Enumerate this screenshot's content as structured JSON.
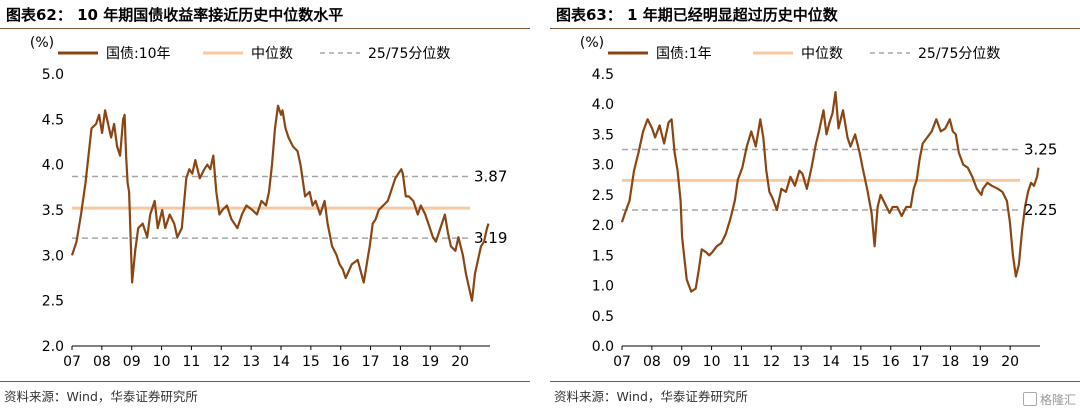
{
  "left": {
    "figure_label": "图表62：",
    "title": "10 年期国债收益率接近历史中位数水平",
    "source": "资料来源：Wind，华泰证券研究所",
    "chart_data": {
      "type": "line",
      "unit_label": "(%)",
      "ylim": [
        2.0,
        5.0
      ],
      "yticks": [
        "5.0",
        "4.5",
        "4.0",
        "3.5",
        "3.0",
        "2.5",
        "2.0"
      ],
      "xlim": [
        2007.0,
        2020.9
      ],
      "xticks": [
        "07",
        "08",
        "09",
        "10",
        "11",
        "12",
        "13",
        "14",
        "15",
        "16",
        "17",
        "18",
        "19",
        "20"
      ],
      "legend": [
        "国债:10年",
        "中位数",
        "25/75分位数"
      ],
      "median": 3.52,
      "p25": 3.19,
      "p75": 3.87,
      "p25_label": "3.19",
      "p75_label": "3.87",
      "series_color": "#8B4513",
      "median_color": "#F8C8A0",
      "quantile_color": "#A6A6A6",
      "series": {
        "name": "国债:10年",
        "x": [
          2007.0,
          2007.15,
          2007.3,
          2007.45,
          2007.55,
          2007.65,
          2007.8,
          2007.9,
          2008.0,
          2008.1,
          2008.2,
          2008.3,
          2008.4,
          2008.5,
          2008.6,
          2008.7,
          2008.75,
          2008.8,
          2008.85,
          2008.9,
          2008.95,
          2009.0,
          2009.1,
          2009.2,
          2009.35,
          2009.5,
          2009.6,
          2009.75,
          2009.85,
          2010.0,
          2010.1,
          2010.25,
          2010.4,
          2010.5,
          2010.65,
          2010.8,
          2010.9,
          2011.0,
          2011.1,
          2011.25,
          2011.4,
          2011.5,
          2011.6,
          2011.7,
          2011.8,
          2011.9,
          2012.0,
          2012.15,
          2012.3,
          2012.5,
          2012.65,
          2012.8,
          2013.0,
          2013.15,
          2013.3,
          2013.45,
          2013.55,
          2013.65,
          2013.75,
          2013.85,
          2013.95,
          2014.0,
          2014.1,
          2014.2,
          2014.35,
          2014.5,
          2014.6,
          2014.75,
          2014.9,
          2015.0,
          2015.1,
          2015.25,
          2015.4,
          2015.5,
          2015.65,
          2015.8,
          2015.9,
          2016.0,
          2016.1,
          2016.3,
          2016.5,
          2016.7,
          2016.8,
          2016.9,
          2017.0,
          2017.1,
          2017.2,
          2017.35,
          2017.5,
          2017.6,
          2017.75,
          2017.85,
          2017.95,
          2018.0,
          2018.1,
          2018.2,
          2018.35,
          2018.5,
          2018.6,
          2018.75,
          2018.9,
          2019.0,
          2019.1,
          2019.25,
          2019.4,
          2019.5,
          2019.6,
          2019.75,
          2019.85,
          2020.0,
          2020.1,
          2020.2,
          2020.3,
          2020.4,
          2020.5,
          2020.6,
          2020.7,
          2020.8,
          2020.85
        ],
        "y": [
          3.0,
          3.15,
          3.45,
          3.8,
          4.1,
          4.4,
          4.45,
          4.55,
          4.35,
          4.6,
          4.45,
          4.3,
          4.45,
          4.2,
          4.1,
          4.5,
          4.55,
          4.1,
          3.8,
          3.7,
          3.2,
          2.7,
          3.05,
          3.3,
          3.35,
          3.2,
          3.45,
          3.6,
          3.3,
          3.5,
          3.3,
          3.45,
          3.35,
          3.2,
          3.3,
          3.85,
          3.95,
          3.9,
          4.05,
          3.85,
          3.95,
          4.0,
          3.95,
          4.1,
          3.7,
          3.45,
          3.5,
          3.55,
          3.4,
          3.3,
          3.45,
          3.55,
          3.5,
          3.45,
          3.6,
          3.55,
          3.7,
          4.0,
          4.4,
          4.65,
          4.55,
          4.6,
          4.4,
          4.3,
          4.2,
          4.15,
          4.0,
          3.65,
          3.7,
          3.55,
          3.6,
          3.45,
          3.6,
          3.35,
          3.1,
          3.0,
          2.9,
          2.85,
          2.75,
          2.9,
          2.95,
          2.7,
          2.9,
          3.1,
          3.35,
          3.4,
          3.5,
          3.55,
          3.6,
          3.7,
          3.85,
          3.9,
          3.95,
          3.9,
          3.65,
          3.65,
          3.6,
          3.45,
          3.55,
          3.45,
          3.3,
          3.2,
          3.15,
          3.3,
          3.45,
          3.25,
          3.1,
          3.05,
          3.2,
          3.0,
          2.8,
          2.65,
          2.5,
          2.8,
          2.95,
          3.1,
          3.15,
          3.3,
          3.35
        ]
      }
    }
  },
  "right": {
    "figure_label": "图表63：",
    "title": "1 年期已经明显超过历史中位数",
    "source": "资料来源：Wind，华泰证券研究所",
    "watermark": "格隆汇",
    "chart_data": {
      "type": "line",
      "unit_label": "(%)",
      "ylim": [
        0.0,
        4.5
      ],
      "yticks": [
        "4.5",
        "4.0",
        "3.5",
        "3.0",
        "2.5",
        "2.0",
        "1.5",
        "1.0",
        "0.5",
        "0.0"
      ],
      "xlim": [
        2007.0,
        2020.9
      ],
      "xticks": [
        "07",
        "08",
        "09",
        "10",
        "11",
        "12",
        "13",
        "14",
        "15",
        "16",
        "17",
        "18",
        "19",
        "20"
      ],
      "legend": [
        "国债:1年",
        "中位数",
        "25/75分位数"
      ],
      "median": 2.74,
      "p25": 2.25,
      "p75": 3.25,
      "p25_label": "2.25",
      "p75_label": "3.25",
      "series_color": "#8B4513",
      "median_color": "#F8C8A0",
      "quantile_color": "#A6A6A6",
      "series": {
        "name": "国债:1年",
        "x": [
          2007.0,
          2007.1,
          2007.25,
          2007.4,
          2007.55,
          2007.7,
          2007.85,
          2008.0,
          2008.1,
          2008.25,
          2008.4,
          2008.55,
          2008.65,
          2008.75,
          2008.85,
          2008.95,
          2009.0,
          2009.15,
          2009.3,
          2009.45,
          2009.55,
          2009.65,
          2009.8,
          2009.9,
          2010.0,
          2010.15,
          2010.3,
          2010.45,
          2010.6,
          2010.75,
          2010.85,
          2011.0,
          2011.15,
          2011.3,
          2011.45,
          2011.6,
          2011.7,
          2011.8,
          2011.9,
          2012.0,
          2012.15,
          2012.3,
          2012.45,
          2012.6,
          2012.75,
          2012.9,
          2013.0,
          2013.15,
          2013.3,
          2013.45,
          2013.55,
          2013.7,
          2013.8,
          2013.9,
          2014.0,
          2014.1,
          2014.2,
          2014.35,
          2014.5,
          2014.6,
          2014.75,
          2014.9,
          2015.0,
          2015.15,
          2015.3,
          2015.4,
          2015.5,
          2015.6,
          2015.75,
          2015.9,
          2016.0,
          2016.15,
          2016.3,
          2016.45,
          2016.6,
          2016.7,
          2016.8,
          2016.9,
          2017.0,
          2017.15,
          2017.3,
          2017.45,
          2017.6,
          2017.75,
          2017.9,
          2018.0,
          2018.1,
          2018.2,
          2018.35,
          2018.5,
          2018.65,
          2018.8,
          2018.95,
          2019.0,
          2019.15,
          2019.3,
          2019.5,
          2019.65,
          2019.8,
          2019.9,
          2020.0,
          2020.1,
          2020.2,
          2020.3,
          2020.4,
          2020.5,
          2020.6,
          2020.7,
          2020.8,
          2020.85
        ],
        "y": [
          2.05,
          2.2,
          2.4,
          2.9,
          3.2,
          3.55,
          3.75,
          3.6,
          3.45,
          3.65,
          3.35,
          3.7,
          3.75,
          3.2,
          2.9,
          2.4,
          1.8,
          1.1,
          0.9,
          0.95,
          1.25,
          1.6,
          1.55,
          1.5,
          1.55,
          1.65,
          1.7,
          1.85,
          2.1,
          2.4,
          2.75,
          2.95,
          3.3,
          3.55,
          3.3,
          3.75,
          3.45,
          2.9,
          2.55,
          2.45,
          2.25,
          2.6,
          2.55,
          2.8,
          2.65,
          2.9,
          2.85,
          2.6,
          2.95,
          3.35,
          3.55,
          3.9,
          3.5,
          3.7,
          3.85,
          4.2,
          3.6,
          3.9,
          3.45,
          3.3,
          3.5,
          3.2,
          2.95,
          2.6,
          2.2,
          1.65,
          2.3,
          2.5,
          2.35,
          2.2,
          2.3,
          2.3,
          2.15,
          2.3,
          2.3,
          2.6,
          2.75,
          3.1,
          3.35,
          3.45,
          3.55,
          3.75,
          3.55,
          3.6,
          3.75,
          3.55,
          3.5,
          3.2,
          3.0,
          2.95,
          2.8,
          2.6,
          2.5,
          2.6,
          2.7,
          2.65,
          2.6,
          2.55,
          2.4,
          2.05,
          1.5,
          1.15,
          1.35,
          1.9,
          2.3,
          2.55,
          2.7,
          2.65,
          2.8,
          2.95
        ]
      }
    }
  }
}
